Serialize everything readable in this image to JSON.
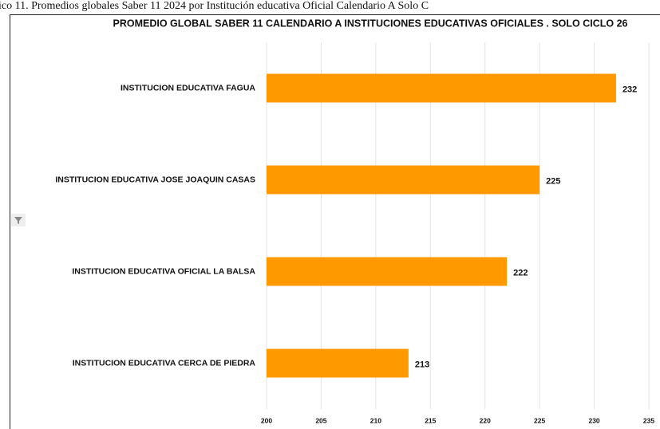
{
  "caption": "ico 11. Promedios globales Saber 11 2024 por Institución educativa Oficial Calendario A Solo C",
  "chart_data": {
    "type": "bar",
    "orientation": "horizontal",
    "title": "PROMEDIO GLOBAL SABER 11 CALENDARIO A INSTITUCIONES EDUCATIVAS OFICIALES . SOLO CICLO 26",
    "categories": [
      "INSTITUCION EDUCATIVA FAGUA",
      "INSTITUCION EDUCATIVA JOSE JOAQUIN CASAS",
      "INSTITUCION EDUCATIVA OFICIAL LA BALSA",
      "INSTITUCION EDUCATIVA CERCA DE PIEDRA"
    ],
    "values": [
      232,
      225,
      222,
      213
    ],
    "color": "#ff9900",
    "xlim": [
      200,
      235
    ],
    "xticks": [
      200,
      205,
      210,
      215,
      220,
      225,
      230,
      235
    ],
    "grid": true
  }
}
